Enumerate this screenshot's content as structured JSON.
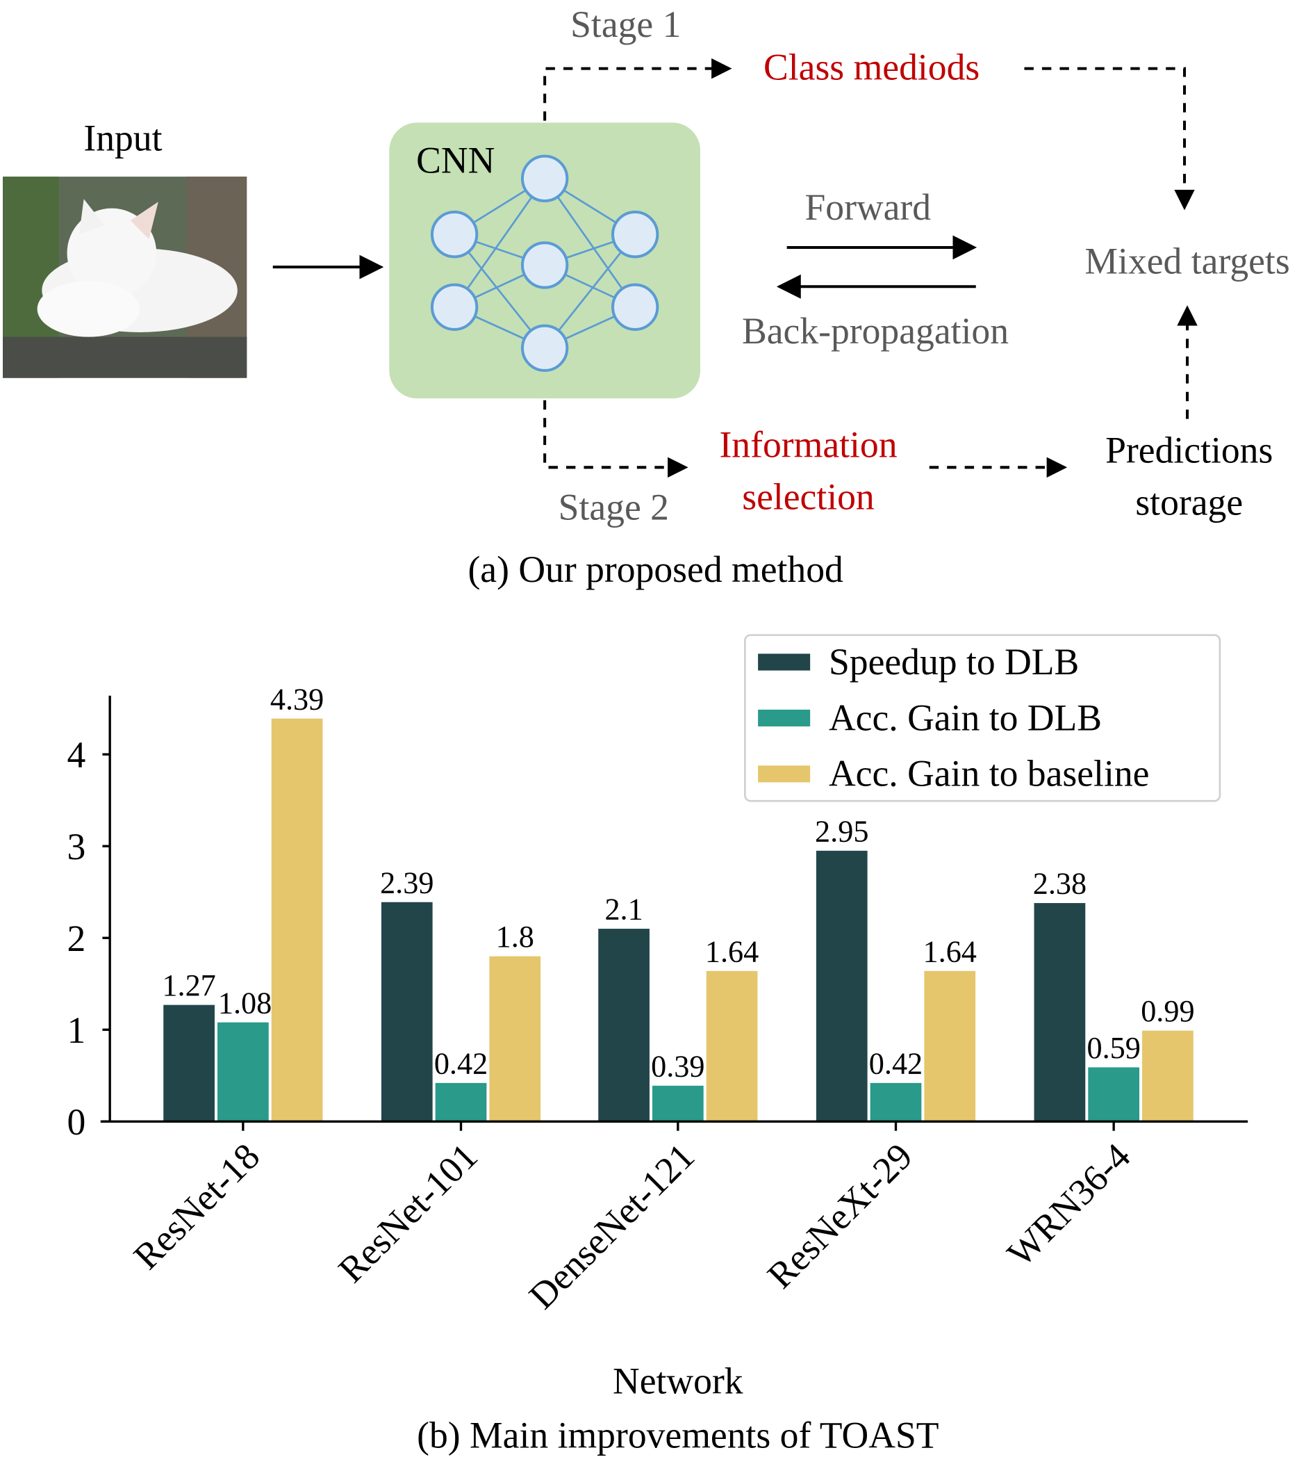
{
  "diagram": {
    "input_label": "Input",
    "cnn_label": "CNN",
    "stage1_label": "Stage 1",
    "stage2_label": "Stage 2",
    "class_mediods": "Class mediods",
    "forward": "Forward",
    "backprop": "Back-propagation",
    "mixed_targets": "Mixed targets",
    "info_selection_line1": "Information",
    "info_selection_line2": "selection",
    "predictions_line1": "Predictions",
    "predictions_line2": "storage",
    "caption": "(a) Our proposed method",
    "colors": {
      "highlight": "#c00000",
      "gray_text": "#595959",
      "cnn_box": "#c5e0b4",
      "node_fill": "#deebf7",
      "node_stroke": "#5b9bd5"
    }
  },
  "chart_data": {
    "type": "bar",
    "caption": "(b) Main improvements of TOAST",
    "xlabel": "Network",
    "ylabel": "",
    "ylim": [
      0,
      4.6
    ],
    "yticks": [
      0,
      1,
      2,
      3,
      4
    ],
    "categories": [
      "ResNet-18",
      "ResNet-101",
      "DenseNet-121",
      "ResNeXt-29",
      "WRN36-4"
    ],
    "series": [
      {
        "name": "Speedup to DLB",
        "color": "#22454a",
        "values": [
          1.27,
          2.39,
          2.1,
          2.95,
          2.38
        ],
        "labels": [
          "1.27",
          "2.39",
          "2.1",
          "2.95",
          "2.38"
        ]
      },
      {
        "name": "Acc. Gain to DLB",
        "color": "#2a9a8a",
        "values": [
          1.08,
          0.42,
          0.39,
          0.42,
          0.59
        ],
        "labels": [
          "1.08",
          "0.42",
          "0.39",
          "0.42",
          "0.59"
        ]
      },
      {
        "name": "Acc. Gain to baseline",
        "color": "#e6c66c",
        "values": [
          4.39,
          1.8,
          1.64,
          1.64,
          0.99
        ],
        "labels": [
          "4.39",
          "1.8",
          "1.64",
          "1.64",
          "0.99"
        ]
      }
    ],
    "legend": "top-right",
    "grid": false
  }
}
